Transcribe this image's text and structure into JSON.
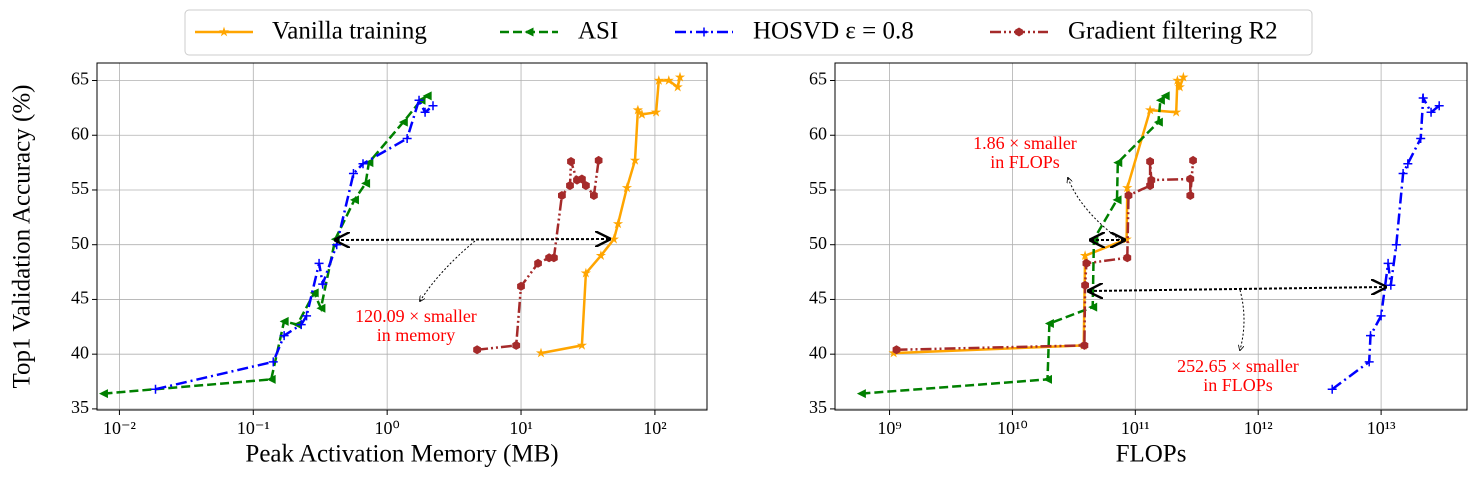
{
  "chart_data": [
    {
      "type": "line",
      "x_scale": "log",
      "grid": true,
      "xlabel": "Peak Activation Memory (MB)",
      "ylabel": "Top1 Validation Accuracy (%)",
      "xlim": [
        0.0068,
        245
      ],
      "ylim": [
        34.9,
        66.6
      ],
      "xticks": [
        {
          "value": 0.01,
          "label": "10⁻²"
        },
        {
          "value": 0.1,
          "label": "10⁻¹"
        },
        {
          "value": 1,
          "label": "10⁰"
        },
        {
          "value": 10,
          "label": "10¹"
        },
        {
          "value": 100,
          "label": "10²"
        }
      ],
      "yticks": [
        35,
        40,
        45,
        50,
        55,
        60,
        65
      ],
      "annotations": [
        [
          "120.09 × smaller",
          "in memory"
        ]
      ],
      "series": [
        {
          "name": "Vanilla training",
          "color": "#ffa500",
          "marker": "star",
          "linestyle": "solid",
          "x": [
            14.1,
            28.5,
            30.5,
            39.5,
            49.4,
            53,
            61.8,
            71,
            74.6,
            80,
            102,
            107,
            127,
            148,
            154
          ],
          "values": [
            40.1,
            40.8,
            47.4,
            49.0,
            50.5,
            51.9,
            55.2,
            57.7,
            62.3,
            61.9,
            62.1,
            65.0,
            65.0,
            64.4,
            65.3
          ]
        },
        {
          "name": "ASI",
          "color": "#008000",
          "marker": "triangle-left",
          "linestyle": "dashed",
          "x": [
            0.0076,
            0.136,
            0.17,
            0.213,
            0.285,
            0.32,
            0.41,
            0.57,
            0.69,
            0.73,
            1.32,
            1.79,
            1.99
          ],
          "values": [
            36.4,
            37.7,
            43.0,
            42.7,
            45.6,
            44.2,
            50.5,
            54.1,
            55.6,
            57.5,
            61.2,
            63.2,
            63.6
          ]
        },
        {
          "name": "HOSVD ε = 0.8",
          "color": "#0000ff",
          "marker": "plus",
          "linestyle": "dashdot",
          "x": [
            0.0186,
            0.141,
            0.17,
            0.228,
            0.25,
            0.31,
            0.33,
            0.42,
            0.56,
            0.66,
            1.41,
            1.73,
            1.92,
            2.2
          ],
          "values": [
            36.8,
            39.3,
            41.7,
            42.7,
            43.5,
            48.3,
            46.4,
            50.0,
            56.5,
            57.4,
            59.7,
            63.2,
            62.1,
            62.7
          ]
        },
        {
          "name": "Gradient filtering R2",
          "color": "#a52a2a",
          "marker": "hexagon",
          "linestyle": "dashdotdot",
          "x": [
            4.7,
            9.2,
            10,
            13.4,
            16.2,
            17.6,
            20.2,
            23.2,
            23.6,
            26.2,
            28.5,
            30.5,
            35,
            38
          ],
          "values": [
            40.4,
            40.8,
            46.2,
            48.3,
            48.8,
            48.8,
            54.5,
            55.4,
            57.6,
            55.9,
            56.0,
            55.4,
            54.5,
            57.7
          ]
        }
      ]
    },
    {
      "type": "line",
      "x_scale": "log",
      "grid": true,
      "xlabel": "FLOPs",
      "xlim": [
        360000000,
        50000000000000
      ],
      "ylim": [
        34.9,
        66.6
      ],
      "xticks": [
        {
          "value": 1000000000,
          "label": "10⁹"
        },
        {
          "value": 10000000000,
          "label": "10¹⁰"
        },
        {
          "value": 100000000000,
          "label": "10¹¹"
        },
        {
          "value": 1000000000000,
          "label": "10¹²"
        },
        {
          "value": 10000000000000,
          "label": "10¹³"
        }
      ],
      "yticks": [
        35,
        40,
        45,
        50,
        55,
        60,
        65
      ],
      "annotations": [
        [
          "1.86 × smaller",
          "in FLOPs"
        ],
        [
          "252.65 × smaller",
          "in FLOPs"
        ]
      ],
      "series": [
        {
          "name": "Vanilla training",
          "color": "#ffa500",
          "marker": "star",
          "linestyle": "solid",
          "x": [
            1080000000,
            38000000000,
            39000000000,
            85000000000,
            86000000000,
            132000000000,
            215000000000,
            220000000000,
            230000000000,
            246000000000
          ],
          "values": [
            40.1,
            40.8,
            49.0,
            50.5,
            55.2,
            62.3,
            62.1,
            65.0,
            64.4,
            65.3
          ]
        },
        {
          "name": "ASI",
          "color": "#008000",
          "marker": "triangle-left",
          "linestyle": "dashed",
          "x": [
            590000000,
            19300000000,
            20000000000,
            45000000000,
            46000000000,
            71000000000,
            72000000000,
            154000000000,
            160000000000,
            175000000000
          ],
          "values": [
            36.4,
            37.7,
            42.8,
            44.3,
            50.5,
            54.1,
            57.5,
            61.2,
            63.2,
            63.6
          ]
        },
        {
          "name": "HOSVD ε = 0.8",
          "color": "#0000ff",
          "marker": "plus",
          "linestyle": "dashdot",
          "x": [
            4000000000000,
            8000000000000,
            8200000000000,
            10000000000000,
            11400000000000,
            12000000000000,
            13300000000000,
            15100000000000,
            16500000000000,
            21000000000000,
            22000000000000,
            25500000000000,
            29700000000000
          ],
          "values": [
            36.8,
            39.3,
            41.7,
            43.5,
            48.3,
            46.3,
            50.0,
            56.5,
            57.4,
            59.7,
            63.4,
            62.1,
            62.7
          ]
        },
        {
          "name": "Gradient filtering R2",
          "color": "#a52a2a",
          "marker": "hexagon",
          "linestyle": "dashdotdot",
          "x": [
            1140000000,
            38500000000,
            39000000000,
            40000000000,
            86000000000,
            88000000000,
            132000000000,
            132000000000,
            135000000000,
            280000000000,
            280000000000,
            295000000000
          ],
          "values": [
            40.4,
            40.8,
            46.3,
            48.3,
            48.8,
            54.5,
            55.4,
            57.6,
            55.9,
            56.0,
            54.5,
            57.7
          ]
        }
      ]
    }
  ]
}
